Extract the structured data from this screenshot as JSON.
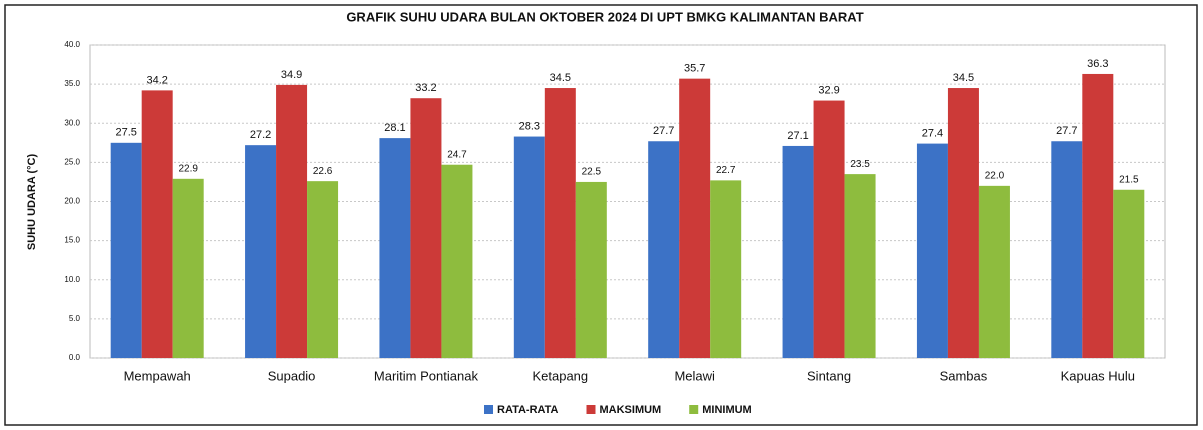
{
  "chart_data": {
    "type": "bar",
    "title": "GRAFIK SUHU UDARA BULAN OKTOBER 2024 DI UPT BMKG KALIMANTAN BARAT",
    "y_label": "SUHU UDARA (°C)",
    "categories": [
      "Mempawah",
      "Supadio",
      "Maritim Pontianak",
      "Ketapang",
      "Melawi",
      "Sintang",
      "Sambas",
      "Kapuas Hulu"
    ],
    "series": [
      {
        "name": "RATA-RATA",
        "color": "#3c72c6",
        "values": [
          27.5,
          27.2,
          28.1,
          28.3,
          27.7,
          27.1,
          27.4,
          27.7
        ]
      },
      {
        "name": "MAKSIMUM",
        "color": "#cc3a38",
        "values": [
          34.2,
          34.9,
          33.2,
          34.5,
          35.7,
          32.9,
          34.5,
          36.3
        ]
      },
      {
        "name": "MINIMUM",
        "color": "#8ebc3e",
        "values": [
          22.9,
          22.6,
          24.7,
          22.5,
          22.7,
          23.5,
          22.0,
          21.5
        ],
        "value_labels": [
          "22.9",
          "22.6",
          "24.7",
          "22.5",
          "22.7",
          "23.5",
          "22.0",
          "21.5"
        ]
      }
    ],
    "ylim": [
      0,
      40
    ],
    "yticks": [
      {
        "value": 0,
        "label": "0.0"
      },
      {
        "value": 5,
        "label": "5.0"
      },
      {
        "value": 10,
        "label": "10.0"
      },
      {
        "value": 15,
        "label": "15.0"
      },
      {
        "value": 20,
        "label": "20.0"
      },
      {
        "value": 25,
        "label": "25.0"
      },
      {
        "value": 30,
        "label": "30.0"
      },
      {
        "value": 35,
        "label": "35.0"
      },
      {
        "value": 40,
        "label": "40.0"
      }
    ],
    "grid": true,
    "legend": "bottom"
  }
}
